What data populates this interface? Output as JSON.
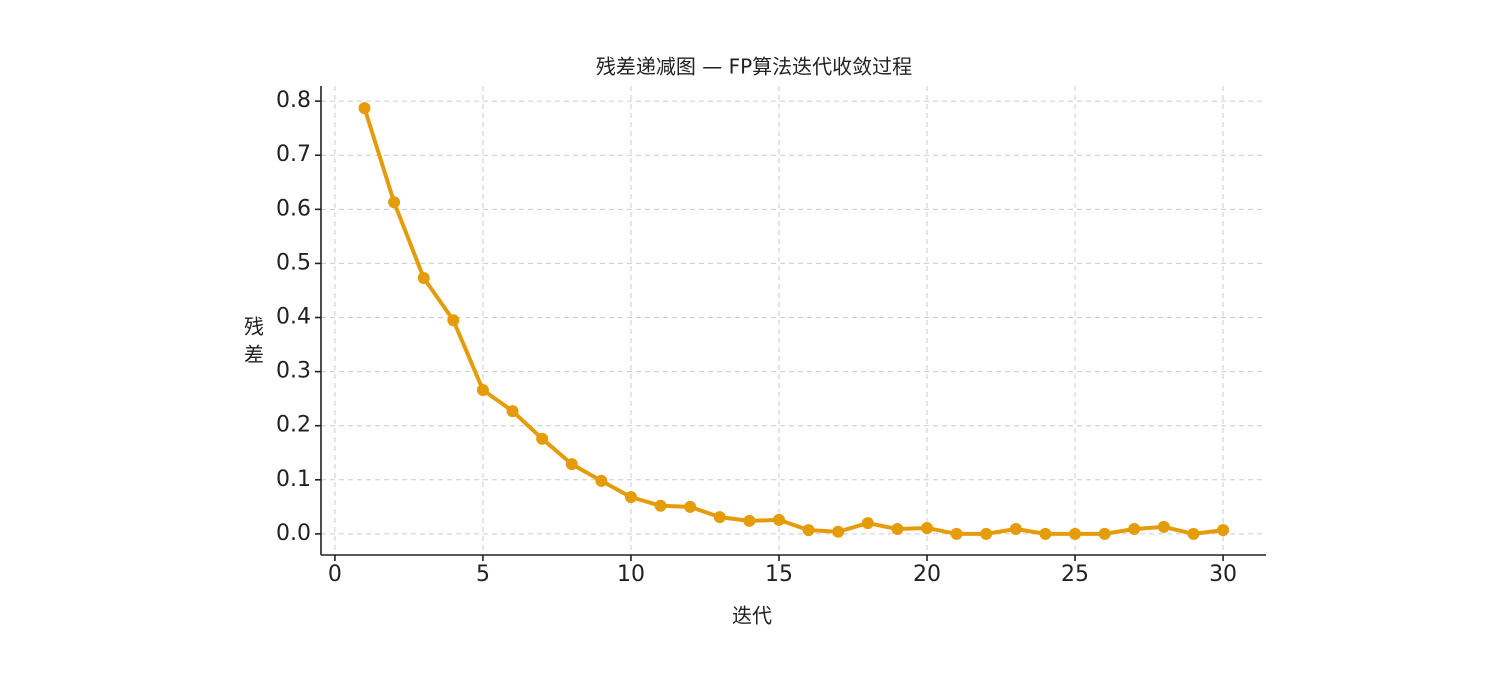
{
  "chart_data": {
    "type": "line",
    "title": "残差递减图 — FP算法迭代收敛过程",
    "xlabel": "迭代",
    "ylabel": "残差",
    "x": [
      1,
      2,
      3,
      4,
      5,
      6,
      7,
      8,
      9,
      10,
      11,
      12,
      13,
      14,
      15,
      16,
      17,
      18,
      19,
      20,
      21,
      22,
      23,
      24,
      25,
      26,
      27,
      28,
      29,
      30
    ],
    "series": [
      {
        "color": "#e59c0b",
        "values": [
          0.787,
          0.613,
          0.473,
          0.395,
          0.266,
          0.227,
          0.176,
          0.129,
          0.098,
          0.068,
          0.052,
          0.05,
          0.031,
          0.024,
          0.026,
          0.007,
          0.004,
          0.02,
          0.009,
          0.011,
          0,
          0,
          0.009,
          0,
          0,
          0,
          0.009,
          0.013,
          0,
          0.007
        ]
      }
    ],
    "xlim": [
      -0.47,
      31.45
    ],
    "ylim": [
      -0.039,
      0.828
    ],
    "xticks": [
      0,
      5,
      10,
      15,
      20,
      25,
      30
    ],
    "yticks": [
      {
        "value": 0,
        "label": "0.0"
      },
      0.1,
      0.2,
      0.3,
      0.4,
      0.5,
      0.6,
      0.7,
      0.8
    ],
    "grid": true
  }
}
